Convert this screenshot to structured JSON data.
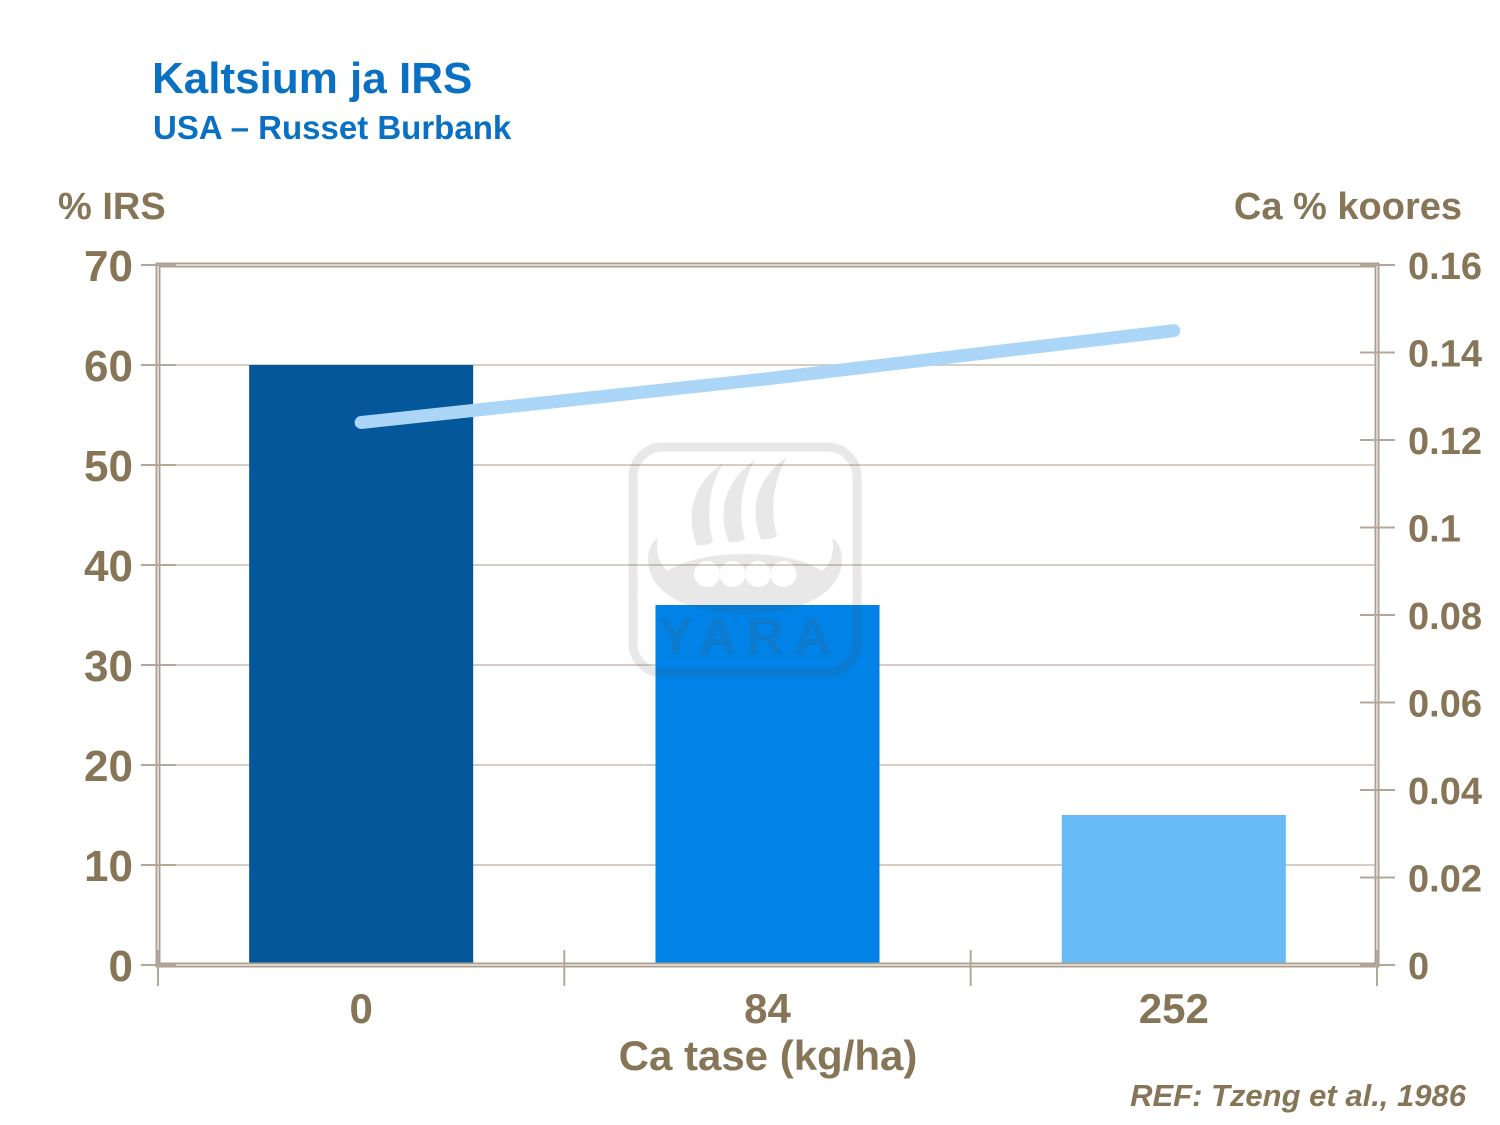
{
  "header": {
    "title": "Kaltsium ja IRS",
    "subtitle": "USA – Russet Burbank"
  },
  "watermark": {
    "label": "YARA"
  },
  "footer": {
    "reference": "REF: Tzeng et al., 1986"
  },
  "colors": {
    "title_blue": "#0A70C4",
    "axis_text": "#867557",
    "frame": "#ACA092",
    "frame_core": "#DCD5CC",
    "tick": "#B3A799",
    "gridline": "#C9BEB0",
    "bar_dark_blue": "#05579B",
    "bar_mid_blue": "#0082E6",
    "bar_light_blue": "#66BBF7",
    "line_light_blue": "#ABD6F8"
  },
  "chart_data": {
    "type": "bar",
    "title": "Kaltsium ja IRS",
    "subtitle": "USA – Russet Burbank",
    "categories": [
      "0",
      "84",
      "252"
    ],
    "x_axis": {
      "title": "Ca tase (kg/ha)"
    },
    "left_axis": {
      "title": "% IRS",
      "min": 0,
      "max": 70,
      "tick_labels": [
        "0",
        "10",
        "20",
        "30",
        "40",
        "50",
        "60",
        "70"
      ]
    },
    "right_axis": {
      "title": "Ca % koores",
      "min": 0,
      "max": 0.16,
      "tick_labels": [
        "0",
        "0.02",
        "0.04",
        "0.06",
        "0.08",
        "0.1",
        "0.12",
        "0.14",
        "0.16"
      ]
    },
    "series": [
      {
        "name": "% IRS",
        "type": "bar",
        "axis": "left",
        "values": [
          60,
          36,
          15
        ],
        "colors": [
          "#05579B",
          "#0082E6",
          "#66BBF7"
        ]
      },
      {
        "name": "Ca % koores",
        "type": "line",
        "axis": "right",
        "values": [
          0.124,
          0.134,
          0.145
        ],
        "color": "#ABD6F8"
      }
    ],
    "grid": "horizontal gridlines at every left-axis tick (10 units)",
    "legend": "none"
  }
}
